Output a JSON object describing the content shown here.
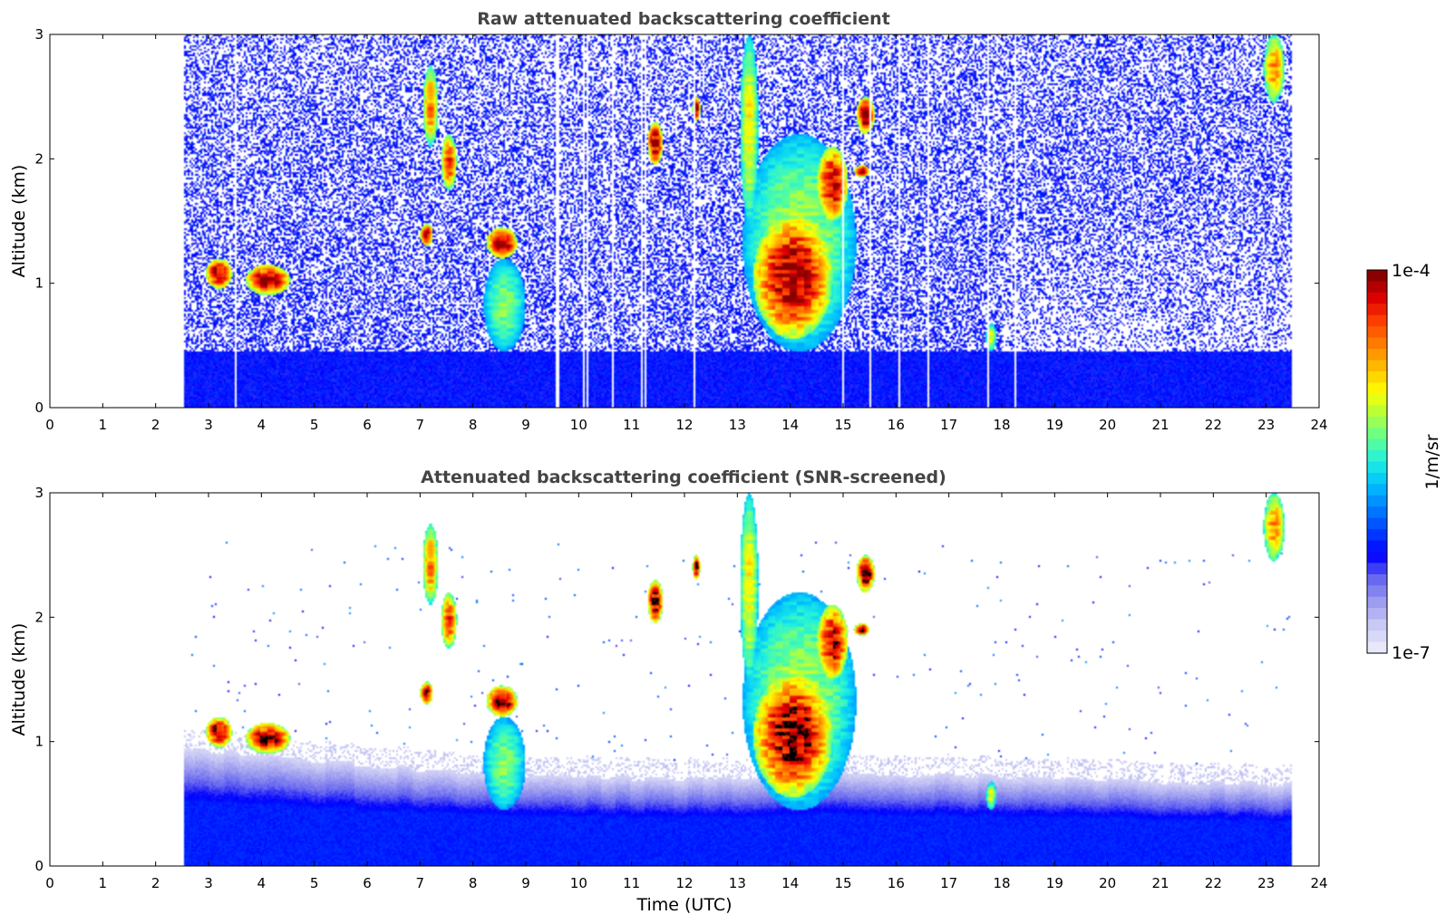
{
  "chart_data": [
    {
      "type": "heatmap",
      "title": "Raw attenuated backscattering coefficient",
      "xlabel": "",
      "ylabel": "Altitude (km)",
      "xlim": [
        0,
        24
      ],
      "ylim": [
        0,
        3
      ],
      "x_ticks": [
        "0",
        "1",
        "2",
        "3",
        "4",
        "5",
        "6",
        "7",
        "8",
        "9",
        "10",
        "11",
        "12",
        "13",
        "14",
        "15",
        "16",
        "17",
        "18",
        "19",
        "20",
        "21",
        "22",
        "23",
        "24"
      ],
      "y_ticks": [
        "0",
        "1",
        "2",
        "3"
      ],
      "data_time_range": [
        2.55,
        23.5
      ],
      "noise_level": "high",
      "noise_threshold_km": 0.45,
      "dropout_times": [
        3.5,
        9.6,
        10.1,
        10.15,
        10.65,
        11.2,
        11.25,
        12.2,
        15.0,
        15.5,
        16.05,
        16.6,
        17.75,
        18.25
      ],
      "features": [
        {
          "t0": 2.95,
          "t1": 3.45,
          "z0": 0.95,
          "z1": 1.2,
          "peak": 1.0
        },
        {
          "t0": 3.7,
          "t1": 4.55,
          "z0": 0.9,
          "z1": 1.15,
          "peak": 1.0
        },
        {
          "t0": 8.25,
          "t1": 8.85,
          "z0": 1.2,
          "z1": 1.45,
          "peak": 1.0
        },
        {
          "t0": 8.2,
          "t1": 9.0,
          "z0": 0.45,
          "z1": 1.2,
          "peak": 0.45
        },
        {
          "t0": 7.05,
          "t1": 7.35,
          "z0": 2.1,
          "z1": 2.75,
          "peak": 0.75
        },
        {
          "t0": 7.0,
          "t1": 7.25,
          "z0": 1.3,
          "z1": 1.48,
          "peak": 0.95
        },
        {
          "t0": 7.4,
          "t1": 7.7,
          "z0": 1.75,
          "z1": 2.2,
          "peak": 0.85
        },
        {
          "t0": 11.3,
          "t1": 11.6,
          "z0": 1.95,
          "z1": 2.3,
          "peak": 1.0
        },
        {
          "t0": 12.15,
          "t1": 12.3,
          "z0": 2.3,
          "z1": 2.5,
          "peak": 1.0
        },
        {
          "t0": 15.25,
          "t1": 15.6,
          "z0": 2.2,
          "z1": 2.5,
          "peak": 1.0
        },
        {
          "t0": 15.2,
          "t1": 15.5,
          "z0": 1.85,
          "z1": 1.95,
          "peak": 1.0
        },
        {
          "t0": 14.5,
          "t1": 15.1,
          "z0": 1.5,
          "z1": 2.1,
          "peak": 0.95
        },
        {
          "t0": 13.05,
          "t1": 13.4,
          "z0": 1.5,
          "z1": 3.0,
          "peak": 0.6
        },
        {
          "t0": 13.3,
          "t1": 14.8,
          "z0": 0.55,
          "z1": 1.55,
          "peak": 1.0
        },
        {
          "t0": 13.1,
          "t1": 15.25,
          "z0": 0.45,
          "z1": 2.2,
          "peak": 0.5
        },
        {
          "t0": 22.95,
          "t1": 23.35,
          "z0": 2.45,
          "z1": 3.0,
          "peak": 0.72
        },
        {
          "t0": 17.7,
          "t1": 17.9,
          "z0": 0.45,
          "z1": 0.68,
          "peak": 0.55
        }
      ]
    },
    {
      "type": "heatmap",
      "title": "Attenuated backscattering coefficient (SNR-screened)",
      "xlabel": "Time (UTC)",
      "ylabel": "Altitude (km)",
      "xlim": [
        0,
        24
      ],
      "ylim": [
        0,
        3
      ],
      "x_ticks": [
        "0",
        "1",
        "2",
        "3",
        "4",
        "5",
        "6",
        "7",
        "8",
        "9",
        "10",
        "11",
        "12",
        "13",
        "14",
        "15",
        "16",
        "17",
        "18",
        "19",
        "20",
        "21",
        "22",
        "23",
        "24"
      ],
      "y_ticks": [
        "0",
        "1",
        "2",
        "3"
      ],
      "data_time_range": [
        2.55,
        23.5
      ],
      "noise_level": "screened",
      "screened_boundary_layer_top_km": [
        {
          "t": 2.55,
          "z": 0.95
        },
        {
          "t": 5.0,
          "z": 0.85
        },
        {
          "t": 7.0,
          "z": 0.78
        },
        {
          "t": 9.5,
          "z": 0.72
        },
        {
          "t": 12.0,
          "z": 0.7
        },
        {
          "t": 15.0,
          "z": 0.75
        },
        {
          "t": 18.0,
          "z": 0.72
        },
        {
          "t": 21.0,
          "z": 0.68
        },
        {
          "t": 23.5,
          "z": 0.65
        }
      ],
      "saturated_color": "#000000",
      "features": [
        {
          "t0": 2.95,
          "t1": 3.45,
          "z0": 0.95,
          "z1": 1.2,
          "peak": 1.0
        },
        {
          "t0": 3.7,
          "t1": 4.55,
          "z0": 0.9,
          "z1": 1.15,
          "peak": 1.0
        },
        {
          "t0": 8.25,
          "t1": 8.85,
          "z0": 1.2,
          "z1": 1.45,
          "peak": 1.0
        },
        {
          "t0": 8.2,
          "t1": 9.0,
          "z0": 0.45,
          "z1": 1.2,
          "peak": 0.45
        },
        {
          "t0": 7.05,
          "t1": 7.35,
          "z0": 2.1,
          "z1": 2.75,
          "peak": 0.75
        },
        {
          "t0": 7.0,
          "t1": 7.25,
          "z0": 1.3,
          "z1": 1.48,
          "peak": 0.95
        },
        {
          "t0": 7.4,
          "t1": 7.7,
          "z0": 1.75,
          "z1": 2.2,
          "peak": 0.85
        },
        {
          "t0": 11.3,
          "t1": 11.6,
          "z0": 1.95,
          "z1": 2.3,
          "peak": 1.0
        },
        {
          "t0": 12.15,
          "t1": 12.3,
          "z0": 2.3,
          "z1": 2.5,
          "peak": 1.0
        },
        {
          "t0": 15.25,
          "t1": 15.6,
          "z0": 2.2,
          "z1": 2.5,
          "peak": 1.0
        },
        {
          "t0": 15.2,
          "t1": 15.5,
          "z0": 1.85,
          "z1": 1.95,
          "peak": 1.0
        },
        {
          "t0": 14.5,
          "t1": 15.1,
          "z0": 1.5,
          "z1": 2.1,
          "peak": 0.95
        },
        {
          "t0": 13.05,
          "t1": 13.4,
          "z0": 1.5,
          "z1": 3.0,
          "peak": 0.6
        },
        {
          "t0": 13.3,
          "t1": 14.8,
          "z0": 0.55,
          "z1": 1.55,
          "peak": 1.0
        },
        {
          "t0": 13.1,
          "t1": 15.25,
          "z0": 0.45,
          "z1": 2.2,
          "peak": 0.5
        },
        {
          "t0": 22.95,
          "t1": 23.35,
          "z0": 2.45,
          "z1": 3.0,
          "peak": 0.72
        },
        {
          "t0": 17.7,
          "t1": 17.9,
          "z0": 0.45,
          "z1": 0.68,
          "peak": 0.55
        }
      ]
    }
  ],
  "colorbar": {
    "label": "1/m/sr",
    "max_label": "1e-4",
    "min_label": "1e-7",
    "colormap": "jet",
    "colors": [
      "#e8e8fa",
      "#c8c8f5",
      "#9a9af0",
      "#6464f0",
      "#0000ff",
      "#0040ff",
      "#0080ff",
      "#00c0ff",
      "#20f0e0",
      "#60ff90",
      "#b0ff40",
      "#ffff00",
      "#ffc000",
      "#ff8000",
      "#ff4000",
      "#e00000",
      "#8a0000"
    ]
  }
}
